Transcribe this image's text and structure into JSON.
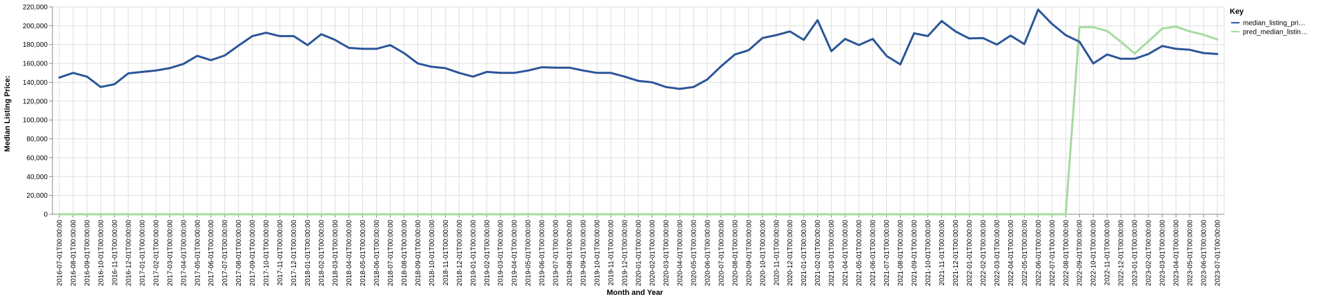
{
  "chart_data": {
    "type": "line",
    "xlabel": "Month and Year",
    "ylabel": "Median Listing Price:",
    "ylim": [
      0,
      220000
    ],
    "y_ticks": [
      0,
      20000,
      40000,
      60000,
      80000,
      100000,
      120000,
      140000,
      160000,
      180000,
      200000,
      220000
    ],
    "y_tick_labels": [
      "0",
      "20,000",
      "40,000",
      "60,000",
      "80,000",
      "100,000",
      "120,000",
      "140,000",
      "160,000",
      "180,000",
      "200,000",
      "220,000"
    ],
    "grid": true,
    "legend": {
      "title": "Key",
      "placement": "right"
    },
    "x": [
      "2016-07-01T00:00:00",
      "2016-08-01T00:00:00",
      "2016-09-01T00:00:00",
      "2016-10-01T00:00:00",
      "2016-11-01T00:00:00",
      "2016-12-01T00:00:00",
      "2017-01-01T00:00:00",
      "2017-02-01T00:00:00",
      "2017-03-01T00:00:00",
      "2017-04-01T00:00:00",
      "2017-05-01T00:00:00",
      "2017-06-01T00:00:00",
      "2017-07-01T00:00:00",
      "2017-08-01T00:00:00",
      "2017-09-01T00:00:00",
      "2017-10-01T00:00:00",
      "2017-11-01T00:00:00",
      "2017-12-01T00:00:00",
      "2018-01-01T00:00:00",
      "2018-02-01T00:00:00",
      "2018-03-01T00:00:00",
      "2018-04-01T00:00:00",
      "2018-05-01T00:00:00",
      "2018-06-01T00:00:00",
      "2018-07-01T00:00:00",
      "2018-08-01T00:00:00",
      "2018-09-01T00:00:00",
      "2018-10-01T00:00:00",
      "2018-11-01T00:00:00",
      "2018-12-01T00:00:00",
      "2019-01-01T00:00:00",
      "2019-02-01T00:00:00",
      "2019-03-01T00:00:00",
      "2019-04-01T00:00:00",
      "2019-05-01T00:00:00",
      "2019-06-01T00:00:00",
      "2019-07-01T00:00:00",
      "2019-08-01T00:00:00",
      "2019-09-01T00:00:00",
      "2019-10-01T00:00:00",
      "2019-11-01T00:00:00",
      "2019-12-01T00:00:00",
      "2020-01-01T00:00:00",
      "2020-02-01T00:00:00",
      "2020-03-01T00:00:00",
      "2020-04-01T00:00:00",
      "2020-05-01T00:00:00",
      "2020-06-01T00:00:00",
      "2020-07-01T00:00:00",
      "2020-08-01T00:00:00",
      "2020-09-01T00:00:00",
      "2020-10-01T00:00:00",
      "2020-11-01T00:00:00",
      "2020-12-01T00:00:00",
      "2021-01-01T00:00:00",
      "2021-02-01T00:00:00",
      "2021-03-01T00:00:00",
      "2021-04-01T00:00:00",
      "2021-05-01T00:00:00",
      "2021-06-01T00:00:00",
      "2021-07-01T00:00:00",
      "2021-08-01T00:00:00",
      "2021-09-01T00:00:00",
      "2021-10-01T00:00:00",
      "2021-11-01T00:00:00",
      "2021-12-01T00:00:00",
      "2022-01-01T00:00:00",
      "2022-02-01T00:00:00",
      "2022-03-01T00:00:00",
      "2022-04-01T00:00:00",
      "2022-05-01T00:00:00",
      "2022-06-01T00:00:00",
      "2022-07-01T00:00:00",
      "2022-08-01T00:00:00",
      "2022-09-01T00:00:00",
      "2022-10-01T00:00:00",
      "2022-11-01T00:00:00",
      "2022-12-01T00:00:00",
      "2023-01-01T00:00:00",
      "2023-02-01T00:00:00",
      "2023-03-01T00:00:00",
      "2023-04-01T00:00:00",
      "2023-05-01T00:00:00",
      "2023-06-01T00:00:00",
      "2023-07-01T00:00:00"
    ],
    "series": [
      {
        "name": "median_listing_pri…",
        "color": "#2a5599",
        "values": [
          145000,
          150000,
          146000,
          135000,
          138000,
          149500,
          151000,
          152500,
          155000,
          159500,
          168000,
          163500,
          168500,
          179000,
          189000,
          192500,
          189000,
          189000,
          179500,
          191000,
          185000,
          176500,
          175500,
          175500,
          179500,
          171000,
          160000,
          156500,
          155000,
          150000,
          146000,
          151000,
          150000,
          150000,
          152500,
          156000,
          155500,
          155500,
          152500,
          150000,
          150000,
          146000,
          141500,
          140000,
          135000,
          133000,
          135000,
          143000,
          157000,
          169500,
          174000,
          187000,
          190000,
          194000,
          185000,
          206000,
          173000,
          186000,
          179500,
          186000,
          168000,
          159000,
          192000,
          189000,
          205000,
          194000,
          186500,
          187000,
          180000,
          189500,
          180500,
          217000,
          202000,
          190000,
          183000,
          160000,
          169500,
          165000,
          165000,
          170000,
          178500,
          175500,
          174500,
          171000,
          170000
        ]
      },
      {
        "name": "pred_median_listin…",
        "color": "#a6dba0",
        "values": [
          0,
          0,
          0,
          0,
          0,
          0,
          0,
          0,
          0,
          0,
          0,
          0,
          0,
          0,
          0,
          0,
          0,
          0,
          0,
          0,
          0,
          0,
          0,
          0,
          0,
          0,
          0,
          0,
          0,
          0,
          0,
          0,
          0,
          0,
          0,
          0,
          0,
          0,
          0,
          0,
          0,
          0,
          0,
          0,
          0,
          0,
          0,
          0,
          0,
          0,
          0,
          0,
          0,
          0,
          0,
          0,
          0,
          0,
          0,
          0,
          0,
          0,
          0,
          0,
          0,
          0,
          0,
          0,
          0,
          0,
          0,
          0,
          0,
          0,
          198500,
          198500,
          194500,
          183000,
          170500,
          183500,
          197000,
          199000,
          194000,
          190500,
          185500
        ]
      }
    ]
  }
}
